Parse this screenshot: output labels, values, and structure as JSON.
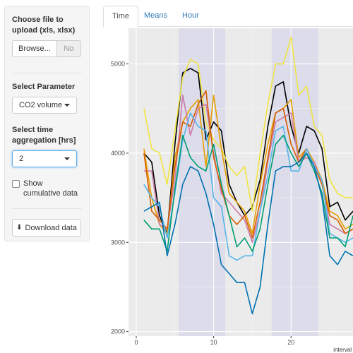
{
  "sidebar": {
    "file_label": "Choose file to upload (xls, xlsx)",
    "browse_label": "Browse...",
    "file_value": "No",
    "parameter_label": "Select Parameter",
    "parameter_value": "CO2 volume",
    "aggregation_label": "Select time aggregation [hrs]",
    "aggregation_value": "2",
    "cumulative_label": "Show cumulative data",
    "download_label": "Download data",
    "download_icon": "download-icon"
  },
  "tabs": [
    {
      "label": "Time",
      "active": true
    },
    {
      "label": "Means",
      "active": false
    },
    {
      "label": "Hour",
      "active": false
    }
  ],
  "chart_data": {
    "type": "line",
    "xlabel": "interval",
    "ylabel": "",
    "xlim": [
      -1,
      28
    ],
    "ylim": [
      1950,
      5400
    ],
    "x_ticks": [
      0,
      10,
      20
    ],
    "y_ticks": [
      2000,
      3000,
      4000,
      5000
    ],
    "grid": true,
    "background": "#ebebeb",
    "shaded_bands": [
      [
        5.5,
        11.5
      ],
      [
        17.5,
        23.5
      ]
    ],
    "shade_color": "#dcdcea",
    "x": [
      1,
      2,
      3,
      4,
      5,
      6,
      7,
      8,
      9,
      10,
      11,
      12,
      13,
      14,
      15,
      16,
      17,
      18,
      19,
      20,
      21,
      22,
      23,
      24,
      25,
      26,
      27,
      28
    ],
    "series": [
      {
        "color": "#000000",
        "values": [
          4000,
          3900,
          3300,
          3100,
          4100,
          4900,
          4950,
          4900,
          4150,
          4350,
          4250,
          3650,
          3450,
          3300,
          3400,
          3700,
          4300,
          4750,
          4800,
          4300,
          4000,
          4300,
          4250,
          4050,
          3400,
          3450,
          3250,
          3350
        ]
      },
      {
        "color": "#f0e442",
        "values": [
          4500,
          4050,
          4000,
          3650,
          4250,
          4850,
          5050,
          5000,
          4350,
          4150,
          4050,
          3850,
          3750,
          3850,
          3350,
          4000,
          4550,
          5000,
          5000,
          5300,
          4650,
          4750,
          4300,
          4200,
          3700,
          3550,
          3500,
          3500
        ]
      },
      {
        "color": "#e69f00",
        "values": [
          4050,
          3500,
          3200,
          3100,
          3950,
          4350,
          4500,
          4600,
          3850,
          4650,
          4050,
          3550,
          3450,
          3350,
          3100,
          3650,
          4100,
          4450,
          4500,
          4600,
          3950,
          4050,
          3900,
          3700,
          3350,
          3300,
          3150,
          3200
        ]
      },
      {
        "color": "#cc79a7",
        "values": [
          3800,
          3800,
          3200,
          3150,
          3700,
          4650,
          4200,
          4500,
          4550,
          4000,
          3550,
          3450,
          3350,
          3250,
          3000,
          3350,
          3900,
          4350,
          4400,
          4450,
          3900,
          3950,
          3900,
          3650,
          3200,
          3150,
          3100,
          3150
        ]
      },
      {
        "color": "#d55e00",
        "values": [
          4000,
          3350,
          3250,
          3150,
          3850,
          4350,
          4300,
          4550,
          4700,
          3950,
          3600,
          3300,
          3200,
          3300,
          3050,
          3450,
          3950,
          4450,
          4500,
          4100,
          3900,
          4050,
          3850,
          3650,
          3300,
          3250,
          3100,
          3150
        ]
      },
      {
        "color": "#56b4e9",
        "values": [
          3650,
          3500,
          3400,
          3050,
          3550,
          4150,
          4450,
          4300,
          4250,
          3500,
          3400,
          2850,
          2800,
          2850,
          2850,
          3350,
          3750,
          4250,
          4300,
          3800,
          3800,
          4050,
          3850,
          3700,
          3100,
          3050,
          3000,
          3050
        ]
      },
      {
        "color": "#009e73",
        "values": [
          3250,
          3150,
          3150,
          2900,
          3600,
          4200,
          3950,
          3850,
          3800,
          4100,
          3650,
          3300,
          2950,
          3050,
          2900,
          3150,
          3650,
          4100,
          4200,
          4000,
          3850,
          4000,
          3800,
          3550,
          3050,
          3050,
          2950,
          3300
        ]
      },
      {
        "color": "#0072b2",
        "values": [
          3350,
          3400,
          3450,
          2850,
          3200,
          3650,
          3850,
          3800,
          3550,
          3200,
          2750,
          2650,
          2550,
          2550,
          2200,
          2500,
          3200,
          3800,
          3850,
          3850,
          3900,
          4000,
          3850,
          3500,
          2850,
          2750,
          2900,
          2850
        ]
      }
    ]
  }
}
